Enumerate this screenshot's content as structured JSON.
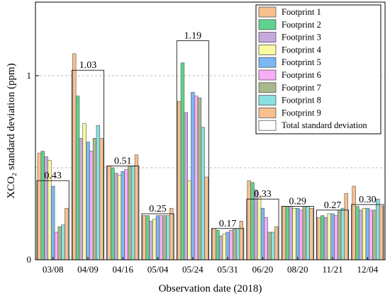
{
  "chart_data": {
    "type": "bar",
    "xlabel": "Observation date (2018)",
    "ylabel": "XCO₂ standard deviation (ppm)",
    "ylim": [
      0,
      1.4
    ],
    "yticks": [
      0,
      1
    ],
    "grid": "dashed horizontal at 0.5 and 1.0",
    "legend_position": "top-right",
    "categories": [
      "03/08",
      "04/09",
      "04/16",
      "05/04",
      "05/24",
      "05/31",
      "06/20",
      "08/20",
      "11/21",
      "12/04"
    ],
    "series": [
      {
        "name": "Footprint 1",
        "color": "#f8c08f",
        "values": [
          0.58,
          1.12,
          0.51,
          0.24,
          0.86,
          0.17,
          0.43,
          0.29,
          0.23,
          0.4
        ]
      },
      {
        "name": "Footprint 2",
        "color": "#5fd38c",
        "values": [
          0.59,
          0.89,
          0.5,
          0.24,
          1.07,
          0.16,
          0.42,
          0.29,
          0.24,
          0.29
        ]
      },
      {
        "name": "Footprint 3",
        "color": "#c7a9de",
        "values": [
          0.56,
          0.66,
          0.47,
          0.21,
          0.8,
          0.13,
          0.38,
          0.29,
          0.23,
          0.27
        ]
      },
      {
        "name": "Footprint 4",
        "color": "#fafaa0",
        "values": [
          0.54,
          0.74,
          0.46,
          0.22,
          0.43,
          0.14,
          0.34,
          0.28,
          0.25,
          0.28
        ]
      },
      {
        "name": "Footprint 5",
        "color": "#7cb6f4",
        "values": [
          0.4,
          0.64,
          0.48,
          0.24,
          0.91,
          0.15,
          0.28,
          0.28,
          0.25,
          0.28
        ]
      },
      {
        "name": "Footprint 6",
        "color": "#f8aef6",
        "values": [
          0.15,
          0.59,
          0.49,
          0.24,
          0.89,
          0.16,
          0.23,
          0.27,
          0.24,
          0.27
        ]
      },
      {
        "name": "Footprint 7",
        "color": "#a9b98b",
        "values": [
          0.18,
          0.66,
          0.51,
          0.24,
          0.88,
          0.17,
          0.15,
          0.29,
          0.27,
          0.27
        ]
      },
      {
        "name": "Footprint 8",
        "color": "#8ae0e0",
        "values": [
          0.19,
          0.73,
          0.51,
          0.24,
          0.72,
          0.17,
          0.15,
          0.29,
          0.28,
          0.33
        ]
      },
      {
        "name": "Footprint 9",
        "color": "#f8c08f",
        "values": [
          0.28,
          0.66,
          0.57,
          0.28,
          0.45,
          0.21,
          0.18,
          0.28,
          0.36,
          0.29
        ]
      }
    ],
    "total": {
      "name": "Total standard deviation",
      "values": [
        0.43,
        1.03,
        0.51,
        0.25,
        1.19,
        0.17,
        0.33,
        0.29,
        0.27,
        0.3
      ],
      "labels": [
        "0.43",
        "1.03",
        "0.51",
        "0.25",
        "1.19",
        "0.17",
        "0.33",
        "0.29",
        "0.27",
        "0.30"
      ]
    }
  }
}
